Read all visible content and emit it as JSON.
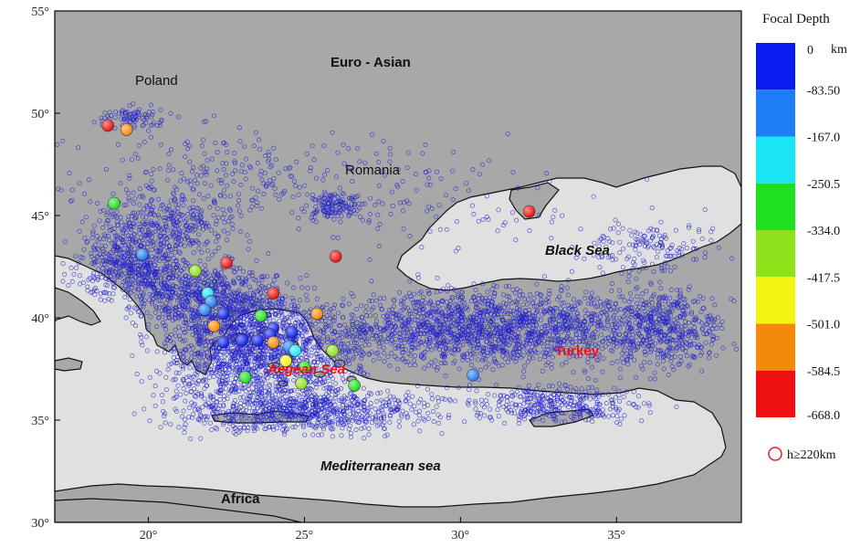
{
  "map": {
    "lon_range": [
      17,
      39
    ],
    "lat_range": [
      30,
      55
    ],
    "x_ticks": [
      "20°",
      "25°",
      "30°",
      "35°"
    ],
    "x_tick_values": [
      20,
      25,
      30,
      35
    ],
    "y_ticks": [
      "30°",
      "35°",
      "40°",
      "45°",
      "50°",
      "55°"
    ],
    "y_tick_values": [
      30,
      35,
      40,
      45,
      50,
      55
    ],
    "land_color": "#a8a8a8",
    "sea_color": "#e0e0e0",
    "background_event_color": "#2222cc"
  },
  "labels": {
    "euro_asian": "Euro - Asian",
    "poland": "Poland",
    "romania": "Romania",
    "black_sea": "Black Sea",
    "turkey": "Turkey",
    "aegean_sea": "Aegean Sea",
    "mediterranean": "Mediterranean sea",
    "africa": "Africa"
  },
  "legend": {
    "title": "Focal Depth",
    "unit": "km",
    "bins": [
      {
        "label": "0",
        "color": "#0b1cf0"
      },
      {
        "label": "-83.50",
        "color": "#1f7ef5"
      },
      {
        "label": "-167.0",
        "color": "#18e6f5"
      },
      {
        "label": "-250.5",
        "color": "#1ee01e"
      },
      {
        "label": "-334.0",
        "color": "#8ee21a"
      },
      {
        "label": "-417.5",
        "color": "#f5f514"
      },
      {
        "label": "-501.0",
        "color": "#f58a0a"
      },
      {
        "label": "-584.5",
        "color": "#ee1010"
      },
      {
        "label": "-668.0",
        "color": ""
      }
    ],
    "marker_label": "h≥220km",
    "marker_color": "#ee2222"
  },
  "deep_events": [
    {
      "lon": 18.7,
      "lat": 49.4,
      "bin": 7
    },
    {
      "lon": 19.3,
      "lat": 49.2,
      "bin": 6
    },
    {
      "lon": 18.9,
      "lat": 45.6,
      "bin": 3
    },
    {
      "lon": 32.2,
      "lat": 45.2,
      "bin": 7
    },
    {
      "lon": 19.8,
      "lat": 43.1,
      "bin": 1
    },
    {
      "lon": 22.5,
      "lat": 42.7,
      "bin": 7
    },
    {
      "lon": 26.0,
      "lat": 43.0,
      "bin": 7
    },
    {
      "lon": 21.5,
      "lat": 42.3,
      "bin": 4
    },
    {
      "lon": 24.0,
      "lat": 41.2,
      "bin": 7
    },
    {
      "lon": 21.9,
      "lat": 41.2,
      "bin": 2
    },
    {
      "lon": 22.0,
      "lat": 40.8,
      "bin": 1
    },
    {
      "lon": 21.8,
      "lat": 40.4,
      "bin": 1
    },
    {
      "lon": 22.4,
      "lat": 40.2,
      "bin": 0
    },
    {
      "lon": 22.1,
      "lat": 39.6,
      "bin": 6
    },
    {
      "lon": 23.6,
      "lat": 40.1,
      "bin": 3
    },
    {
      "lon": 25.4,
      "lat": 40.2,
      "bin": 6
    },
    {
      "lon": 24.6,
      "lat": 39.3,
      "bin": 0
    },
    {
      "lon": 24.0,
      "lat": 39.5,
      "bin": 0
    },
    {
      "lon": 23.9,
      "lat": 39.2,
      "bin": 0
    },
    {
      "lon": 23.5,
      "lat": 38.9,
      "bin": 0
    },
    {
      "lon": 22.4,
      "lat": 38.8,
      "bin": 0
    },
    {
      "lon": 23.0,
      "lat": 38.9,
      "bin": 0
    },
    {
      "lon": 24.0,
      "lat": 38.8,
      "bin": 6
    },
    {
      "lon": 24.5,
      "lat": 38.6,
      "bin": 1
    },
    {
      "lon": 24.7,
      "lat": 38.4,
      "bin": 2
    },
    {
      "lon": 25.9,
      "lat": 38.4,
      "bin": 4
    },
    {
      "lon": 24.4,
      "lat": 37.9,
      "bin": 5
    },
    {
      "lon": 25.0,
      "lat": 37.6,
      "bin": 3
    },
    {
      "lon": 23.1,
      "lat": 37.1,
      "bin": 3
    },
    {
      "lon": 24.9,
      "lat": 36.8,
      "bin": 4
    },
    {
      "lon": 26.6,
      "lat": 36.7,
      "bin": 3
    },
    {
      "lon": 30.4,
      "lat": 37.2,
      "bin": 1
    }
  ]
}
